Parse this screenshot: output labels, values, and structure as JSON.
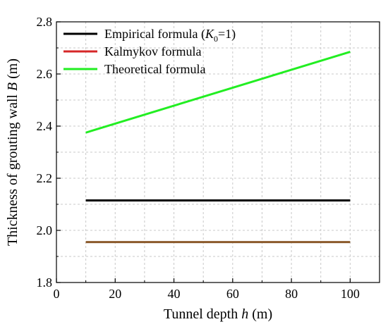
{
  "chart_data": {
    "type": "line",
    "xlabel": {
      "main": "Tunnel depth ",
      "italic": "h",
      "tail": " (m)"
    },
    "ylabel": {
      "main": "Thickness of grouting wall ",
      "italic": "B",
      "tail": " (m)"
    },
    "xlim": [
      0,
      110
    ],
    "ylim": [
      1.8,
      2.8
    ],
    "xticks": [
      0,
      20,
      40,
      60,
      80,
      100
    ],
    "xtick_labels": [
      "0",
      "20",
      "40",
      "60",
      "80",
      "100"
    ],
    "yticks": [
      1.8,
      2.0,
      2.2,
      2.4,
      2.6,
      2.8
    ],
    "ytick_labels": [
      "1.8",
      "2.0",
      "2.2",
      "2.4",
      "2.6",
      "2.8"
    ],
    "grid": true,
    "legend_position": "top-left",
    "series": [
      {
        "name": "Empirical formula (K0=1)",
        "legend_parts": {
          "pre": "Empirical formula (",
          "italic": "K",
          "sub": "0",
          "post": "=1)"
        },
        "color": "#000000",
        "x": [
          10,
          100
        ],
        "y": [
          2.115,
          2.115
        ]
      },
      {
        "name": "Kalmykov formula",
        "legend_parts": {
          "pre": "Kalmykov formula",
          "italic": "",
          "sub": "",
          "post": ""
        },
        "color": "#d62728",
        "line_color": "#8b5a2b",
        "x": [
          10,
          100
        ],
        "y": [
          1.955,
          1.955
        ]
      },
      {
        "name": "Theoretical formula",
        "legend_parts": {
          "pre": "Theoretical formula",
          "italic": "",
          "sub": "",
          "post": ""
        },
        "color": "#22ee22",
        "x": [
          10,
          100
        ],
        "y": [
          2.375,
          2.685
        ]
      }
    ]
  }
}
